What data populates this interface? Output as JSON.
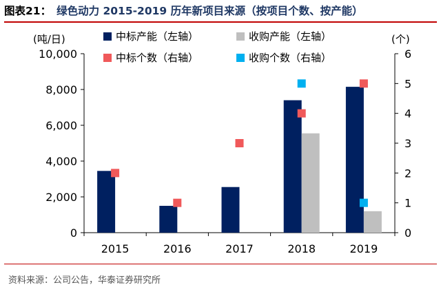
{
  "header": {
    "figure_label": "图表21：",
    "title_text": "绿色动力 2015-2019 历年新项目来源（按项目个数、按产能）"
  },
  "footer": {
    "source": "资料来源：公司公告，华泰证券研究所"
  },
  "colors": {
    "title": "#1f3864",
    "rule": "#c00000",
    "bar_winning": "#002060",
    "bar_acquired": "#bfbfbf",
    "marker_winning": "#f0595a",
    "marker_acquired": "#00b0f0"
  },
  "chart_data": {
    "type": "bar",
    "categories": [
      "2015",
      "2016",
      "2017",
      "2018",
      "2019"
    ],
    "left_axis": {
      "unit_label": "(吨/日)",
      "ylim": [
        0,
        10000
      ],
      "ticks": [
        "0",
        "2,000",
        "4,000",
        "6,000",
        "8,000",
        "10,000"
      ],
      "tick_values": [
        0,
        2000,
        4000,
        6000,
        8000,
        10000
      ]
    },
    "right_axis": {
      "unit_label": "(个)",
      "ylim": [
        0,
        6
      ],
      "ticks": [
        "0",
        "1",
        "2",
        "3",
        "4",
        "5",
        "6"
      ],
      "tick_values": [
        0,
        1,
        2,
        3,
        4,
        5,
        6
      ]
    },
    "series": [
      {
        "name": "中标产能（左轴）",
        "kind": "bar",
        "axis": "left",
        "color": "#002060",
        "values": [
          3450,
          1500,
          2550,
          7400,
          8150
        ]
      },
      {
        "name": "收购产能（左轴）",
        "kind": "bar",
        "axis": "left",
        "color": "#bfbfbf",
        "values": [
          0,
          0,
          0,
          5550,
          1200
        ]
      },
      {
        "name": "中标个数（右轴）",
        "kind": "marker",
        "axis": "right",
        "color": "#f0595a",
        "values": [
          2,
          1,
          3,
          4,
          5
        ]
      },
      {
        "name": "收购个数（右轴）",
        "kind": "marker",
        "axis": "right",
        "color": "#00b0f0",
        "values": [
          null,
          null,
          null,
          5,
          1
        ]
      }
    ],
    "legend_placement": "top",
    "grid": false
  }
}
